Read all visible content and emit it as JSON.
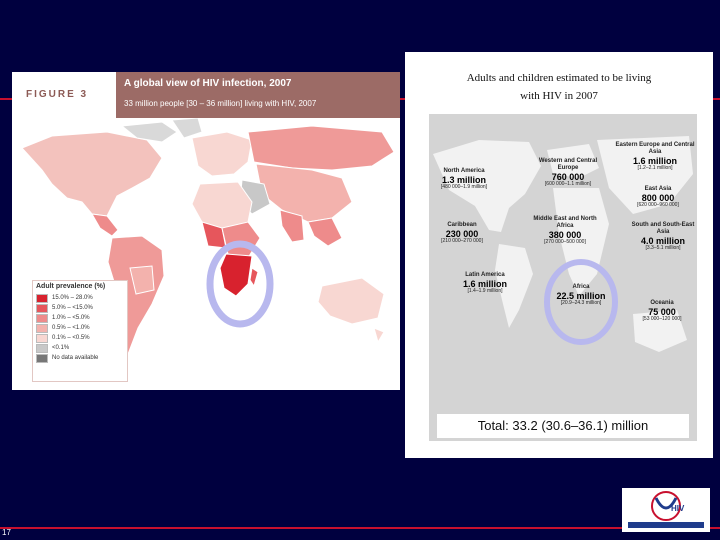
{
  "left_figure": {
    "label": "FIGURE 3",
    "title": "A global view of HIV infection, 2007",
    "subtitle": "33 million people [30 – 36 million] living with HIV, 2007",
    "legend_title": "Adult prevalence (%)",
    "legend": [
      {
        "label": "15.0% – 28.0%",
        "color": "#d8222e"
      },
      {
        "label": "5.0% – <15.0%",
        "color": "#e6565c"
      },
      {
        "label": "1.0% – <5.0%",
        "color": "#ee8b8b"
      },
      {
        "label": "0.5% – <1.0%",
        "color": "#f3b2ad"
      },
      {
        "label": "0.1% – <0.5%",
        "color": "#f8d7d2"
      },
      {
        "label": "<0.1%",
        "color": "#c8c8c8"
      },
      {
        "label": "No data available",
        "color": "#777777"
      }
    ]
  },
  "right_figure": {
    "title_line1": "Adults and children estimated to be living",
    "title_line2": "with HIV in 2007",
    "regions": {
      "north_america": {
        "name": "North America",
        "value": "1.3 million",
        "range": "[480 000–1.9 million]"
      },
      "western_central_europe": {
        "name": "Western and Central Europe",
        "value": "760 000",
        "range": "[600 000–1.1 million]"
      },
      "eastern_europe_central_asia": {
        "name": "Eastern Europe and Central Asia",
        "value": "1.6 million",
        "range": "[1.2–2.1 million]"
      },
      "east_asia": {
        "name": "East Asia",
        "value": "800 000",
        "range": "[620 000–960 000]"
      },
      "caribbean": {
        "name": "Caribbean",
        "value": "230 000",
        "range": "[210 000–270 000]"
      },
      "middle_east_north_africa": {
        "name": "Middle East and North Africa",
        "value": "380 000",
        "range": "[270 000–500 000]"
      },
      "south_se_asia": {
        "name": "South and South-East Asia",
        "value": "4.0 million",
        "range": "[3.3–5.1 million]"
      },
      "latin_america": {
        "name": "Latin America",
        "value": "1.6 million",
        "range": "[1.4–1.9 million]"
      },
      "sub_saharan_africa": {
        "name": "Africa",
        "value": "22.5 million",
        "range": "[20.9–24.3 million]"
      },
      "oceania": {
        "name": "Oceania",
        "value": "75 000",
        "range": "[53 000–120 000]"
      }
    },
    "total": "Total: 33.2 (30.6–36.1) million"
  },
  "footer": {
    "page_number": "17",
    "logo_text": "HIV"
  }
}
